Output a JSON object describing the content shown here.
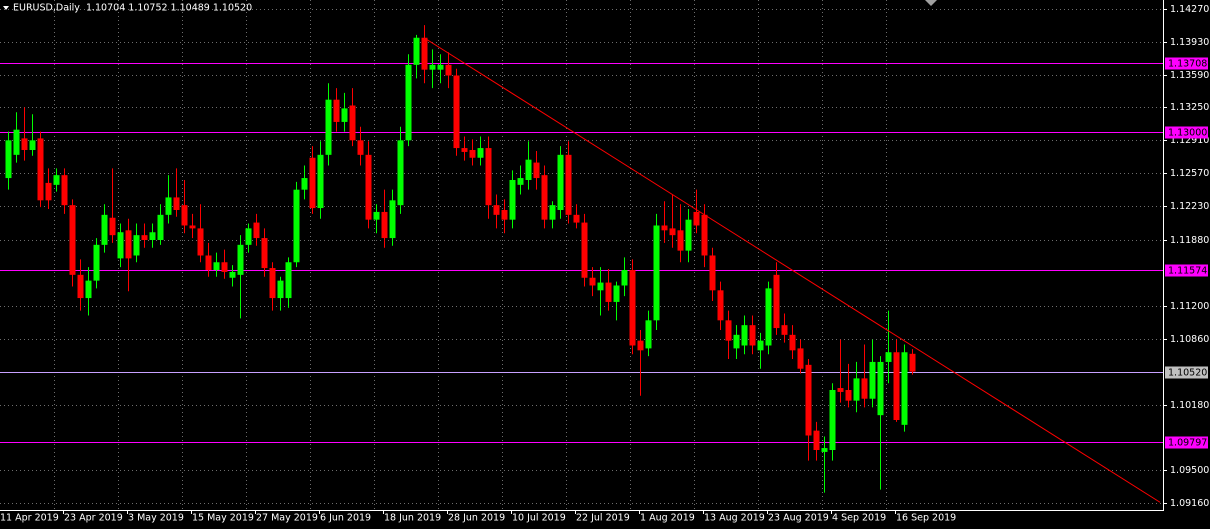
{
  "chart_data": {
    "type": "candlestick",
    "title": "EURUSD,Daily  1.10704 1.10752 1.10489 1.10520",
    "up_color": "#00ff00",
    "down_color": "#ff0000",
    "grid": true,
    "ylim": [
      1.0909,
      1.1436
    ],
    "yticks": [
      {
        "value": 1.1427,
        "label": "1.14270"
      },
      {
        "value": 1.1393,
        "label": "1.13930"
      },
      {
        "value": 1.1359,
        "label": "1.13590"
      },
      {
        "value": 1.1325,
        "label": "1.13250"
      },
      {
        "value": 1.1291,
        "label": "1.12910"
      },
      {
        "value": 1.1257,
        "label": "1.12570"
      },
      {
        "value": 1.1223,
        "label": "1.12230"
      },
      {
        "value": 1.1188,
        "label": "1.11880"
      },
      {
        "value": 1.112,
        "label": "1.11200"
      },
      {
        "value": 1.1086,
        "label": "1.10860"
      },
      {
        "value": 1.1018,
        "label": "1.10180"
      },
      {
        "value": 1.095,
        "label": "1.09500"
      },
      {
        "value": 1.0916,
        "label": "1.09160"
      }
    ],
    "xlabels": [
      {
        "index": 0,
        "label": "11 Apr 2019"
      },
      {
        "index": 8,
        "label": "23 Apr 2019"
      },
      {
        "index": 16,
        "label": "3 May 2019"
      },
      {
        "index": 24,
        "label": "15 May 2019"
      },
      {
        "index": 32,
        "label": "27 May 2019"
      },
      {
        "index": 40,
        "label": "6 Jun 2019"
      },
      {
        "index": 48,
        "label": "18 Jun 2019"
      },
      {
        "index": 56,
        "label": "28 Jun 2019"
      },
      {
        "index": 64,
        "label": "10 Jul 2019"
      },
      {
        "index": 72,
        "label": "22 Jul 2019"
      },
      {
        "index": 80,
        "label": "1 Aug 2019"
      },
      {
        "index": 88,
        "label": "13 Aug 2019"
      },
      {
        "index": 96,
        "label": "23 Aug 2019"
      },
      {
        "index": 104,
        "label": "4 Sep 2019"
      },
      {
        "index": 112,
        "label": "16 Sep 2019"
      }
    ],
    "levels": [
      {
        "value": 1.13708,
        "label": "1.13708",
        "color": "#ff00ff",
        "box": "#ff00ff"
      },
      {
        "value": 1.13,
        "label": "1.13000",
        "color": "#ff00ff",
        "box": "#ff00ff"
      },
      {
        "value": 1.11574,
        "label": "1.11574",
        "color": "#ff00ff",
        "box": "#ff00ff"
      },
      {
        "value": 1.1052,
        "label": "1.10520",
        "color": "#c8a0ff",
        "box": "#c0c0c0"
      },
      {
        "value": 1.09797,
        "label": "1.09797",
        "color": "#ff00ff",
        "box": "#ff00ff"
      }
    ],
    "trendline": {
      "index": [
        52,
        144
      ],
      "values": [
        1.1397,
        1.0917
      ],
      "color": "#ff0000"
    },
    "ohlc": [
      [
        1.1252,
        1.13,
        1.124,
        1.1291
      ],
      [
        1.1276,
        1.132,
        1.1268,
        1.1302
      ],
      [
        1.1293,
        1.1325,
        1.127,
        1.1281
      ],
      [
        1.1281,
        1.1318,
        1.1275,
        1.1291
      ],
      [
        1.1293,
        1.13,
        1.1222,
        1.1229
      ],
      [
        1.1247,
        1.1262,
        1.122,
        1.1229
      ],
      [
        1.1245,
        1.1262,
        1.1238,
        1.1255
      ],
      [
        1.1255,
        1.1262,
        1.1215,
        1.1224
      ],
      [
        1.1224,
        1.123,
        1.114,
        1.1152
      ],
      [
        1.1152,
        1.1168,
        1.1115,
        1.1128
      ],
      [
        1.1128,
        1.116,
        1.111,
        1.1146
      ],
      [
        1.1146,
        1.119,
        1.1138,
        1.1183
      ],
      [
        1.1183,
        1.1225,
        1.1175,
        1.1214
      ],
      [
        1.1211,
        1.1262,
        1.1185,
        1.1193
      ],
      [
        1.1169,
        1.1205,
        1.116,
        1.1196
      ],
      [
        1.1198,
        1.121,
        1.1135,
        1.1169
      ],
      [
        1.1172,
        1.1205,
        1.1165,
        1.1193
      ],
      [
        1.1193,
        1.1205,
        1.118,
        1.1188
      ],
      [
        1.1188,
        1.1205,
        1.118,
        1.1196
      ],
      [
        1.1188,
        1.1225,
        1.1183,
        1.1214
      ],
      [
        1.1214,
        1.1255,
        1.1205,
        1.1232
      ],
      [
        1.1232,
        1.1262,
        1.1212,
        1.1219
      ],
      [
        1.1224,
        1.125,
        1.1195,
        1.1203
      ],
      [
        1.1203,
        1.1215,
        1.119,
        1.12
      ],
      [
        1.12,
        1.1225,
        1.1165,
        1.1172
      ],
      [
        1.1172,
        1.1185,
        1.115,
        1.1157
      ],
      [
        1.1157,
        1.1175,
        1.115,
        1.1165
      ],
      [
        1.1165,
        1.1178,
        1.1148,
        1.1155
      ],
      [
        1.1149,
        1.1162,
        1.114,
        1.1155
      ],
      [
        1.1152,
        1.1193,
        1.1107,
        1.1183
      ],
      [
        1.1183,
        1.1205,
        1.1175,
        1.12
      ],
      [
        1.1206,
        1.1215,
        1.1182,
        1.119
      ],
      [
        1.119,
        1.12,
        1.115,
        1.1159
      ],
      [
        1.1159,
        1.1165,
        1.1115,
        1.1128
      ],
      [
        1.1128,
        1.115,
        1.1115,
        1.1146
      ],
      [
        1.1128,
        1.117,
        1.1118,
        1.1165
      ],
      [
        1.1165,
        1.1248,
        1.116,
        1.124
      ],
      [
        1.124,
        1.1265,
        1.123,
        1.1252
      ],
      [
        1.1273,
        1.1285,
        1.1215,
        1.1221
      ],
      [
        1.1221,
        1.129,
        1.121,
        1.1276
      ],
      [
        1.1276,
        1.135,
        1.1265,
        1.1333
      ],
      [
        1.1333,
        1.1345,
        1.13,
        1.131
      ],
      [
        1.131,
        1.134,
        1.13,
        1.1324
      ],
      [
        1.1327,
        1.1345,
        1.1285,
        1.1291
      ],
      [
        1.1291,
        1.1305,
        1.1265,
        1.1276
      ],
      [
        1.1276,
        1.129,
        1.12,
        1.1209
      ],
      [
        1.1209,
        1.1225,
        1.1195,
        1.1217
      ],
      [
        1.1217,
        1.124,
        1.118,
        1.119
      ],
      [
        1.119,
        1.124,
        1.1182,
        1.1229
      ],
      [
        1.1224,
        1.1305,
        1.1215,
        1.1291
      ],
      [
        1.1291,
        1.138,
        1.1285,
        1.1369
      ],
      [
        1.1369,
        1.14,
        1.1355,
        1.1397
      ],
      [
        1.1397,
        1.141,
        1.135,
        1.1364
      ],
      [
        1.1364,
        1.1385,
        1.1345,
        1.1369
      ],
      [
        1.1364,
        1.138,
        1.135,
        1.1369
      ],
      [
        1.1369,
        1.1382,
        1.1345,
        1.1358
      ],
      [
        1.1358,
        1.1365,
        1.1275,
        1.1283
      ],
      [
        1.1283,
        1.1295,
        1.127,
        1.1279
      ],
      [
        1.1281,
        1.1292,
        1.1265,
        1.1273
      ],
      [
        1.1273,
        1.1295,
        1.1265,
        1.1283
      ],
      [
        1.1283,
        1.1295,
        1.121,
        1.1224
      ],
      [
        1.1224,
        1.1235,
        1.12,
        1.1214
      ],
      [
        1.1219,
        1.123,
        1.1195,
        1.1209
      ],
      [
        1.1209,
        1.126,
        1.12,
        1.125
      ],
      [
        1.1245,
        1.1265,
        1.1235,
        1.1252
      ],
      [
        1.125,
        1.129,
        1.124,
        1.1271
      ],
      [
        1.1268,
        1.128,
        1.124,
        1.1252
      ],
      [
        1.1255,
        1.1265,
        1.12,
        1.1209
      ],
      [
        1.1209,
        1.1228,
        1.12,
        1.1224
      ],
      [
        1.1219,
        1.1285,
        1.121,
        1.1276
      ],
      [
        1.1276,
        1.129,
        1.1205,
        1.1214
      ],
      [
        1.1214,
        1.1225,
        1.12,
        1.1206
      ],
      [
        1.1206,
        1.1215,
        1.114,
        1.1149
      ],
      [
        1.1149,
        1.116,
        1.113,
        1.1141
      ],
      [
        1.1136,
        1.116,
        1.111,
        1.1144
      ],
      [
        1.1144,
        1.1158,
        1.1115,
        1.1124
      ],
      [
        1.1124,
        1.1145,
        1.1105,
        1.1141
      ],
      [
        1.1141,
        1.117,
        1.113,
        1.1157
      ],
      [
        1.1157,
        1.1168,
        1.107,
        1.1079
      ],
      [
        1.1084,
        1.1095,
        1.1027,
        1.1074
      ],
      [
        1.1076,
        1.1115,
        1.1068,
        1.1105
      ],
      [
        1.1105,
        1.1215,
        1.1095,
        1.1203
      ],
      [
        1.1203,
        1.1228,
        1.1185,
        1.1198
      ],
      [
        1.12,
        1.1235,
        1.118,
        1.1193
      ],
      [
        1.1198,
        1.1225,
        1.1165,
        1.1177
      ],
      [
        1.1177,
        1.122,
        1.1165,
        1.1209
      ],
      [
        1.1217,
        1.124,
        1.1195,
        1.1203
      ],
      [
        1.1214,
        1.1225,
        1.116,
        1.1172
      ],
      [
        1.1172,
        1.118,
        1.1125,
        1.1136
      ],
      [
        1.1136,
        1.1145,
        1.1095,
        1.1105
      ],
      [
        1.1105,
        1.1115,
        1.1065,
        1.1084
      ],
      [
        1.1076,
        1.11,
        1.1065,
        1.109
      ],
      [
        1.1079,
        1.111,
        1.107,
        1.11
      ],
      [
        1.11,
        1.111,
        1.107,
        1.1079
      ],
      [
        1.1074,
        1.1092,
        1.1055,
        1.1084
      ],
      [
        1.1079,
        1.1145,
        1.107,
        1.1138
      ],
      [
        1.1152,
        1.1165,
        1.109,
        1.1097
      ],
      [
        1.11,
        1.1112,
        1.1082,
        1.109
      ],
      [
        1.109,
        1.11,
        1.1065,
        1.1074
      ],
      [
        1.1076,
        1.1085,
        1.105,
        1.1055
      ],
      [
        1.1059,
        1.1065,
        1.096,
        1.0986
      ],
      [
        1.0991,
        1.1,
        1.096,
        1.0971
      ],
      [
        1.0969,
        1.0985,
        1.0927,
        1.0973
      ],
      [
        1.0971,
        1.104,
        1.096,
        1.1033
      ],
      [
        1.1035,
        1.1085,
        1.102,
        1.1031
      ],
      [
        1.1033,
        1.106,
        1.1015,
        1.1022
      ],
      [
        1.1022,
        1.1062,
        1.101,
        1.1045
      ],
      [
        1.1045,
        1.108,
        1.1015,
        1.1024
      ],
      [
        1.1024,
        1.1085,
        1.1015,
        1.1062
      ],
      [
        1.1007,
        1.1068,
        1.093,
        1.1062
      ],
      [
        1.1062,
        1.1115,
        1.104,
        1.1072
      ],
      [
        1.1072,
        1.1085,
        1.1,
        1.1002
      ],
      [
        1.0997,
        1.108,
        1.099,
        1.1072
      ],
      [
        1.10704,
        1.10752,
        1.10489,
        1.1052
      ]
    ]
  }
}
